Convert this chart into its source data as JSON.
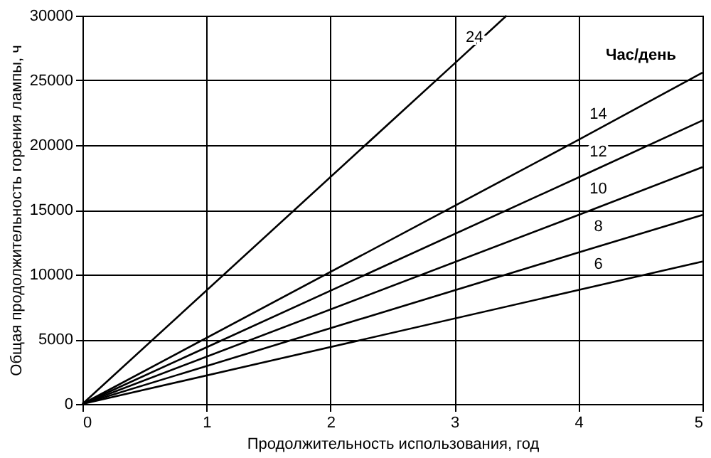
{
  "chart_data": {
    "type": "line",
    "xlabel": "Продолжительность использования, год",
    "ylabel": "Общая продолжительность горения лампы, ч",
    "legend_title": "Час/день",
    "xlim": [
      0,
      5
    ],
    "ylim": [
      0,
      30000
    ],
    "xticks": [
      0,
      1,
      2,
      3,
      4,
      5
    ],
    "yticks": [
      0,
      5000,
      10000,
      15000,
      20000,
      25000,
      30000
    ],
    "grid": true,
    "legend": false,
    "line_style": "solid",
    "marker": "none",
    "series": [
      {
        "name": "24",
        "color": "#000000",
        "x": [
          0,
          3,
          3.42
        ],
        "values": [
          0,
          26300,
          30000
        ]
      },
      {
        "name": "14",
        "color": "#000000",
        "x": [
          0,
          4,
          5
        ],
        "values": [
          0,
          20400,
          25600
        ]
      },
      {
        "name": "12",
        "color": "#000000",
        "x": [
          0,
          4,
          5
        ],
        "values": [
          0,
          17500,
          21900
        ]
      },
      {
        "name": "10",
        "color": "#000000",
        "x": [
          0,
          4,
          5
        ],
        "values": [
          0,
          14600,
          18300
        ]
      },
      {
        "name": "8",
        "color": "#000000",
        "x": [
          0,
          4,
          5
        ],
        "values": [
          0,
          11700,
          14600
        ]
      },
      {
        "name": "6",
        "color": "#000000",
        "x": [
          0,
          4,
          5
        ],
        "values": [
          0,
          8800,
          11000
        ]
      }
    ]
  }
}
